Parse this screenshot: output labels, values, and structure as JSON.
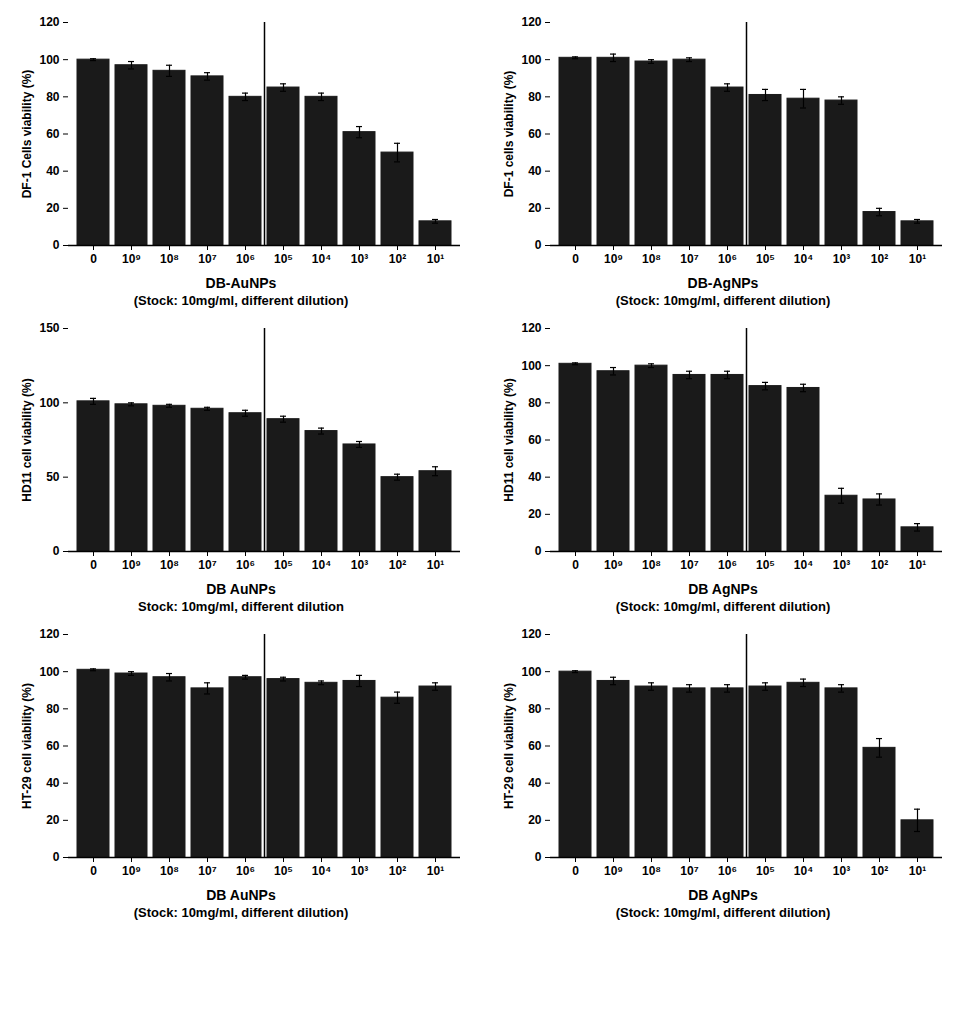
{
  "chart_data": [
    {
      "type": "bar",
      "ylabel": "DF-1 Cells viability (%)",
      "xlabel": "DB-AuNPs\n(Stock: 10mg/ml, different dilution)",
      "categories": [
        "0",
        "10⁹",
        "10⁸",
        "10⁷",
        "10⁶",
        "10⁵",
        "10⁴",
        "10³",
        "10²",
        "10¹"
      ],
      "values": [
        100,
        97,
        94,
        91,
        80,
        85,
        80,
        61,
        50,
        13
      ],
      "errors": [
        0.5,
        2,
        3,
        2,
        2,
        2,
        2,
        3,
        5,
        1
      ],
      "color": "#1a1a1a",
      "ylim": [
        0,
        120
      ],
      "yticks": [
        0,
        20,
        40,
        60,
        80,
        100,
        120
      ]
    },
    {
      "type": "bar",
      "ylabel": "DF-1 cells viability (%)",
      "xlabel": "DB-AgNPs\n(Stock: 10mg/ml, different dilution)",
      "categories": [
        "0",
        "10⁹",
        "10⁸",
        "10⁷",
        "10⁶",
        "10⁵",
        "10⁴",
        "10³",
        "10²",
        "10¹"
      ],
      "values": [
        101,
        101,
        99,
        100,
        85,
        81,
        79,
        78,
        18,
        13
      ],
      "errors": [
        0.5,
        2,
        1,
        1,
        2,
        3,
        5,
        2,
        2,
        1
      ],
      "color": "#1a1a1a",
      "ylim": [
        0,
        120
      ],
      "yticks": [
        0,
        20,
        40,
        60,
        80,
        100,
        120
      ]
    },
    {
      "type": "bar",
      "ylabel": "HD11 cell viability (%)",
      "xlabel": "DB AuNPs\nStock: 10mg/ml, different dilution",
      "categories": [
        "0",
        "10⁹",
        "10⁸",
        "10⁷",
        "10⁶",
        "10⁵",
        "10⁴",
        "10³",
        "10²",
        "10¹"
      ],
      "values": [
        101,
        99,
        98,
        96,
        93,
        89,
        81,
        72,
        50,
        54
      ],
      "errors": [
        2,
        1,
        1,
        1,
        2,
        2,
        2,
        2,
        2,
        3
      ],
      "color": "#1a1a1a",
      "ylim": [
        0,
        150
      ],
      "yticks": [
        0,
        50,
        100,
        150
      ]
    },
    {
      "type": "bar",
      "ylabel": "HD11 cell viability (%)",
      "xlabel": "DB AgNPs\n(Stock: 10mg/ml, different dilution)",
      "categories": [
        "0",
        "10⁹",
        "10⁸",
        "10⁷",
        "10⁶",
        "10⁵",
        "10⁴",
        "10³",
        "10²",
        "10¹"
      ],
      "values": [
        101,
        97,
        100,
        95,
        95,
        89,
        88,
        30,
        28,
        13
      ],
      "errors": [
        0.5,
        2,
        1,
        2,
        2,
        2,
        2,
        4,
        3,
        2
      ],
      "color": "#1a1a1a",
      "ylim": [
        0,
        120
      ],
      "yticks": [
        0,
        20,
        40,
        60,
        80,
        100,
        120
      ]
    },
    {
      "type": "bar",
      "ylabel": "HT-29 cell viability (%)",
      "xlabel": "DB AuNPs\n(Stock: 10mg/ml, different dilution)",
      "categories": [
        "0",
        "10⁹",
        "10⁸",
        "10⁷",
        "10⁶",
        "10⁵",
        "10⁴",
        "10³",
        "10²",
        "10¹"
      ],
      "values": [
        101,
        99,
        97,
        91,
        97,
        96,
        94,
        95,
        86,
        92
      ],
      "errors": [
        0.5,
        1,
        2,
        3,
        1,
        1,
        1,
        3,
        3,
        2
      ],
      "color": "#1a1a1a",
      "ylim": [
        0,
        120
      ],
      "yticks": [
        0,
        20,
        40,
        60,
        80,
        100,
        120
      ]
    },
    {
      "type": "bar",
      "ylabel": "HT-29 cell viability (%)",
      "xlabel": "DB AgNPs\n(Stock: 10mg/ml, different dilution)",
      "categories": [
        "0",
        "10⁹",
        "10⁸",
        "10⁷",
        "10⁶",
        "10⁵",
        "10⁴",
        "10³",
        "10²",
        "10¹"
      ],
      "values": [
        100,
        95,
        92,
        91,
        91,
        92,
        94,
        91,
        59,
        20
      ],
      "errors": [
        0.5,
        2,
        2,
        2,
        2,
        2,
        2,
        2,
        5,
        6
      ],
      "color": "#1a1a1a",
      "ylim": [
        0,
        120
      ],
      "yticks": [
        0,
        20,
        40,
        60,
        80,
        100,
        120
      ]
    }
  ]
}
